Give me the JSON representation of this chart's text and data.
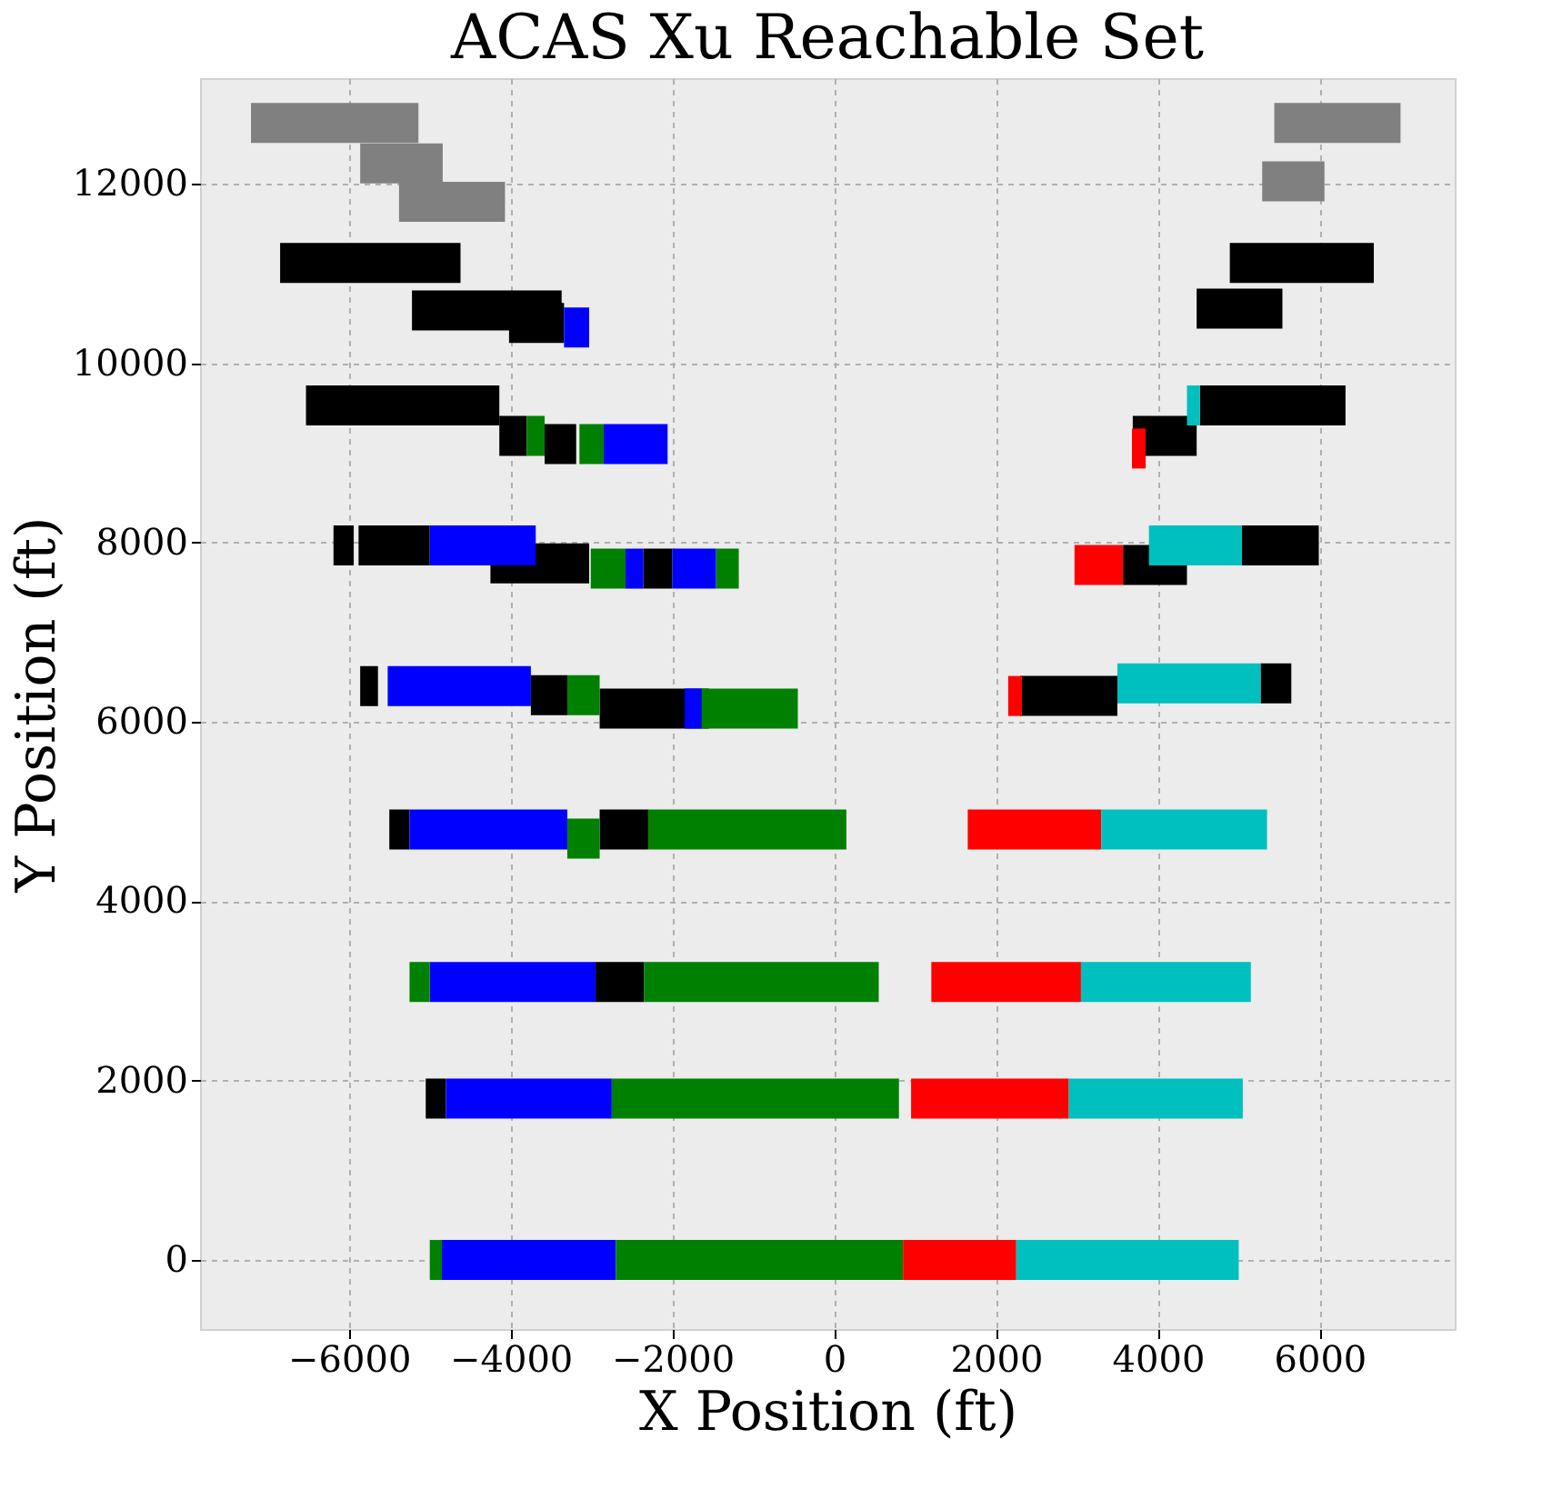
{
  "chart_data": {
    "type": "line",
    "title": "ACAS Xu Reachable Set",
    "xlabel": "X Position (ft)",
    "ylabel": "Y Position (ft)",
    "xlim": [
      -7840,
      7670
    ],
    "ylim": [
      -770,
      13180
    ],
    "xticks": [
      {
        "value": -6000,
        "label": "−6000"
      },
      {
        "value": -4000,
        "label": "−4000"
      },
      {
        "value": -2000,
        "label": "−2000"
      },
      0,
      2000,
      4000,
      6000
    ],
    "yticks": [
      0,
      2000,
      4000,
      6000,
      8000,
      10000,
      12000
    ],
    "grid": true,
    "line_style": "solid",
    "series": [
      {
        "color": "#808080",
        "x": [
          -7210,
          -5140
        ],
        "values": [
          12680,
          12680
        ]
      },
      {
        "color": "#808080",
        "x": [
          -5860,
          -4840
        ],
        "values": [
          12230,
          12230
        ]
      },
      {
        "color": "#808080",
        "x": [
          -5380,
          -4070
        ],
        "values": [
          11800,
          11800
        ]
      },
      {
        "color": "#808080",
        "x": [
          5440,
          7000
        ],
        "values": [
          12680,
          12680
        ]
      },
      {
        "color": "#808080",
        "x": [
          5290,
          6060
        ],
        "values": [
          12030,
          12030
        ]
      },
      {
        "color": "#000000",
        "x": [
          -6850,
          -4620
        ],
        "values": [
          11120,
          11120
        ]
      },
      {
        "color": "#000000",
        "x": [
          -5220,
          -3370
        ],
        "values": [
          10590,
          10590
        ]
      },
      {
        "color": "#000000",
        "x": [
          -4020,
          -3340
        ],
        "values": [
          10450,
          10450
        ]
      },
      {
        "color": "#000000",
        "x": [
          4480,
          5540
        ],
        "values": [
          10610,
          10610
        ]
      },
      {
        "color": "#000000",
        "x": [
          4890,
          6670
        ],
        "values": [
          11120,
          11120
        ]
      },
      {
        "color": "#000000",
        "x": [
          -6530,
          -4140
        ],
        "values": [
          9530,
          9530
        ]
      },
      {
        "color": "#000000",
        "x": [
          -4140,
          -3800
        ],
        "values": [
          9190,
          9190
        ]
      },
      {
        "color": "#000000",
        "x": [
          -3580,
          -3190
        ],
        "values": [
          9100,
          9100
        ]
      },
      {
        "color": "#000000",
        "x": [
          3690,
          4480
        ],
        "values": [
          9190,
          9190
        ]
      },
      {
        "color": "#000000",
        "x": [
          4520,
          6320
        ],
        "values": [
          9530,
          9530
        ]
      },
      {
        "color": "#000000",
        "x": [
          -6190,
          -5940
        ],
        "values": [
          7970,
          7970
        ]
      },
      {
        "color": "#000000",
        "x": [
          -5880,
          -5000
        ],
        "values": [
          7970,
          7970
        ]
      },
      {
        "color": "#000000",
        "x": [
          -4250,
          -3030
        ],
        "values": [
          7770,
          7770
        ]
      },
      {
        "color": "#000000",
        "x": [
          -2360,
          -2000
        ],
        "values": [
          7710,
          7710
        ]
      },
      {
        "color": "#000000",
        "x": [
          3570,
          4360
        ],
        "values": [
          7750,
          7750
        ]
      },
      {
        "color": "#000000",
        "x": [
          5040,
          5990
        ],
        "values": [
          7970,
          7970
        ]
      },
      {
        "color": "#000000",
        "x": [
          -5860,
          -5640
        ],
        "values": [
          6400,
          6400
        ]
      },
      {
        "color": "#000000",
        "x": [
          -3750,
          -3300
        ],
        "values": [
          6300,
          6300
        ]
      },
      {
        "color": "#000000",
        "x": [
          -2900,
          -1550
        ],
        "values": [
          6150,
          6150
        ]
      },
      {
        "color": "#000000",
        "x": [
          2300,
          3500
        ],
        "values": [
          6290,
          6290
        ]
      },
      {
        "color": "#000000",
        "x": [
          5270,
          5650
        ],
        "values": [
          6430,
          6430
        ]
      },
      {
        "color": "#000000",
        "x": [
          -5500,
          -5250
        ],
        "values": [
          4800,
          4800
        ]
      },
      {
        "color": "#000000",
        "x": [
          -2900,
          -2300
        ],
        "values": [
          4800,
          4800
        ]
      },
      {
        "color": "#000000",
        "x": [
          -2950,
          -2350
        ],
        "values": [
          3100,
          3100
        ]
      },
      {
        "color": "#000000",
        "x": [
          -5050,
          -4800
        ],
        "values": [
          1800,
          1800
        ]
      },
      {
        "color": "#0000ff",
        "x": [
          -3340,
          -3030
        ],
        "values": [
          10400,
          10400
        ]
      },
      {
        "color": "#0000ff",
        "x": [
          -2850,
          -2060
        ],
        "values": [
          9100,
          9100
        ]
      },
      {
        "color": "#0000ff",
        "x": [
          -5000,
          -3690
        ],
        "values": [
          7970,
          7970
        ]
      },
      {
        "color": "#0000ff",
        "x": [
          -2580,
          -2360
        ],
        "values": [
          7710,
          7710
        ]
      },
      {
        "color": "#0000ff",
        "x": [
          -2000,
          -1460
        ],
        "values": [
          7710,
          7710
        ]
      },
      {
        "color": "#0000ff",
        "x": [
          -5520,
          -3750
        ],
        "values": [
          6400,
          6400
        ]
      },
      {
        "color": "#0000ff",
        "x": [
          -1850,
          -1640
        ],
        "values": [
          6150,
          6150
        ]
      },
      {
        "color": "#0000ff",
        "x": [
          -5250,
          -3300
        ],
        "values": [
          4800,
          4800
        ]
      },
      {
        "color": "#0000ff",
        "x": [
          -5000,
          -2950
        ],
        "values": [
          3100,
          3100
        ]
      },
      {
        "color": "#0000ff",
        "x": [
          -4800,
          -2750
        ],
        "values": [
          1800,
          1800
        ]
      },
      {
        "color": "#0000ff",
        "x": [
          -4850,
          -2700
        ],
        "values": [
          0,
          0
        ]
      },
      {
        "color": "#008000",
        "x": [
          -3800,
          -3580
        ],
        "values": [
          9190,
          9190
        ]
      },
      {
        "color": "#008000",
        "x": [
          -3150,
          -2850
        ],
        "values": [
          9100,
          9100
        ]
      },
      {
        "color": "#008000",
        "x": [
          -3010,
          -2580
        ],
        "values": [
          7710,
          7710
        ]
      },
      {
        "color": "#008000",
        "x": [
          -1460,
          -1180
        ],
        "values": [
          7710,
          7710
        ]
      },
      {
        "color": "#008000",
        "x": [
          -3300,
          -2900
        ],
        "values": [
          6300,
          6300
        ]
      },
      {
        "color": "#008000",
        "x": [
          -1640,
          -450
        ],
        "values": [
          6150,
          6150
        ]
      },
      {
        "color": "#008000",
        "x": [
          -3300,
          -2900
        ],
        "values": [
          4700,
          4700
        ]
      },
      {
        "color": "#008000",
        "x": [
          -2300,
          150
        ],
        "values": [
          4800,
          4800
        ]
      },
      {
        "color": "#008000",
        "x": [
          -5250,
          -5000
        ],
        "values": [
          3100,
          3100
        ]
      },
      {
        "color": "#008000",
        "x": [
          -2350,
          550
        ],
        "values": [
          3100,
          3100
        ]
      },
      {
        "color": "#008000",
        "x": [
          -2750,
          800
        ],
        "values": [
          1800,
          1800
        ]
      },
      {
        "color": "#008000",
        "x": [
          -5000,
          -4850
        ],
        "values": [
          0,
          0
        ]
      },
      {
        "color": "#008000",
        "x": [
          -2700,
          850
        ],
        "values": [
          0,
          0
        ]
      },
      {
        "color": "#ff0000",
        "x": [
          3680,
          3850
        ],
        "values": [
          9050,
          9050
        ]
      },
      {
        "color": "#ff0000",
        "x": [
          2970,
          3570
        ],
        "values": [
          7750,
          7750
        ]
      },
      {
        "color": "#ff0000",
        "x": [
          2150,
          2320
        ],
        "values": [
          6290,
          6290
        ]
      },
      {
        "color": "#ff0000",
        "x": [
          1650,
          3300
        ],
        "values": [
          4800,
          4800
        ]
      },
      {
        "color": "#ff0000",
        "x": [
          1200,
          3050
        ],
        "values": [
          3100,
          3100
        ]
      },
      {
        "color": "#ff0000",
        "x": [
          950,
          2900
        ],
        "values": [
          1800,
          1800
        ]
      },
      {
        "color": "#ff0000",
        "x": [
          850,
          2250
        ],
        "values": [
          0,
          0
        ]
      },
      {
        "color": "#00bfbf",
        "x": [
          4360,
          4520
        ],
        "values": [
          9530,
          9530
        ]
      },
      {
        "color": "#00bfbf",
        "x": [
          3890,
          5040
        ],
        "values": [
          7970,
          7970
        ]
      },
      {
        "color": "#00bfbf",
        "x": [
          3500,
          5270
        ],
        "values": [
          6430,
          6430
        ]
      },
      {
        "color": "#00bfbf",
        "x": [
          3300,
          5350
        ],
        "values": [
          4800,
          4800
        ]
      },
      {
        "color": "#00bfbf",
        "x": [
          3050,
          5150
        ],
        "values": [
          3100,
          3100
        ]
      },
      {
        "color": "#00bfbf",
        "x": [
          2900,
          5050
        ],
        "values": [
          1800,
          1800
        ]
      },
      {
        "color": "#00bfbf",
        "x": [
          2250,
          5000
        ],
        "values": [
          0,
          0
        ]
      }
    ]
  }
}
